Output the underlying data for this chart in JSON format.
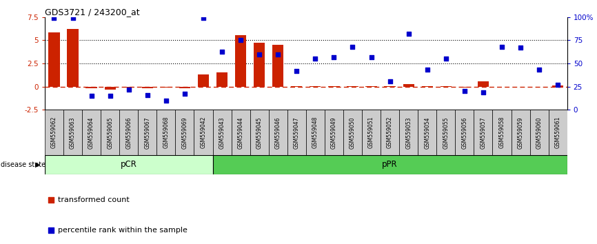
{
  "title": "GDS3721 / 243200_at",
  "samples": [
    "GSM559062",
    "GSM559063",
    "GSM559064",
    "GSM559065",
    "GSM559066",
    "GSM559067",
    "GSM559068",
    "GSM559069",
    "GSM559042",
    "GSM559043",
    "GSM559044",
    "GSM559045",
    "GSM559046",
    "GSM559047",
    "GSM559048",
    "GSM559049",
    "GSM559050",
    "GSM559051",
    "GSM559052",
    "GSM559053",
    "GSM559054",
    "GSM559055",
    "GSM559056",
    "GSM559057",
    "GSM559058",
    "GSM559059",
    "GSM559060",
    "GSM559061"
  ],
  "transformed_count": [
    5.85,
    6.2,
    -0.15,
    -0.3,
    -0.1,
    -0.15,
    -0.1,
    -0.15,
    1.3,
    1.5,
    5.55,
    4.75,
    4.5,
    0.05,
    0.05,
    0.05,
    0.05,
    0.05,
    0.05,
    0.3,
    0.05,
    0.05,
    -0.1,
    0.55,
    -0.05,
    -0.05,
    -0.05,
    0.1
  ],
  "percentile_rank": [
    99,
    99,
    15,
    15,
    22,
    16,
    10,
    17,
    99,
    63,
    75,
    60,
    60,
    42,
    55,
    57,
    68,
    57,
    31,
    82,
    43,
    55,
    20,
    19,
    68,
    67,
    43,
    27
  ],
  "pCR_count": 9,
  "pPR_count": 19,
  "left_ylim": [
    -2.5,
    7.5
  ],
  "right_ylim": [
    0,
    100
  ],
  "left_yticks": [
    -2.5,
    0.0,
    2.5,
    5.0,
    7.5
  ],
  "right_yticks": [
    0,
    25,
    50,
    75,
    100
  ],
  "right_yticklabels": [
    "0",
    "25",
    "50",
    "75",
    "100%"
  ],
  "hlines": [
    2.5,
    5.0
  ],
  "bar_color": "#CC2200",
  "scatter_color": "#0000CC",
  "bg_color_pCR": "#CCFFCC",
  "bg_color_pPR": "#55CC55",
  "zero_line_color": "#CC2200",
  "grid_color": "black",
  "bar_width": 0.6
}
